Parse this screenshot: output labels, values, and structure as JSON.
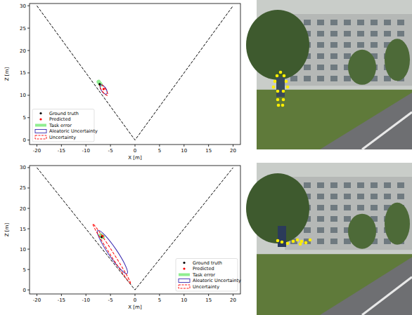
{
  "chart_data": [
    {
      "type": "scatter",
      "xlabel": "X [m]",
      "ylabel": "Z [m]",
      "xlim": [
        -21.5,
        21.5
      ],
      "ylim": [
        -1,
        30.5
      ],
      "xticks": [
        -20,
        -15,
        -10,
        -5,
        0,
        5,
        10,
        15,
        20
      ],
      "yticks": [
        0,
        5,
        10,
        15,
        20,
        25,
        30
      ],
      "legend": "lower left",
      "series": [
        {
          "type": "line",
          "line_style": "dashed",
          "color": "#000000",
          "x": [
            -20,
            0,
            20
          ],
          "values": [
            30,
            0,
            30
          ]
        },
        {
          "name": "Ground truth",
          "type": "scatter",
          "marker": "dot",
          "color": "#000000",
          "x": [
            -7.2
          ],
          "values": [
            12.5
          ]
        },
        {
          "name": "Predicted",
          "type": "scatter",
          "marker": "dot",
          "color": "#ff0000",
          "x": [
            -6.4
          ],
          "values": [
            11.4
          ]
        },
        {
          "name": "Task error",
          "type": "line",
          "line_style": "solid",
          "color": "#90ee90",
          "x": [
            -7.4,
            -7.0
          ],
          "values": [
            13.0,
            12.4
          ]
        },
        {
          "name": "Aleatoric Uncertainty",
          "type": "ellipse",
          "line_style": "solid",
          "color": "#3a2ab0",
          "x": [
            -7.0,
            -5.8
          ],
          "values": [
            12.3,
            10.3
          ],
          "half_width": 0.5
        },
        {
          "name": "Uncertainty",
          "type": "ellipse",
          "line_style": "dashed",
          "color": "#ff0000",
          "x": [
            -7.2,
            -5.6
          ],
          "values": [
            12.5,
            10.0
          ],
          "half_width": 0.4
        }
      ]
    },
    {
      "type": "scatter",
      "xlabel": "X [m]",
      "ylabel": "Z [m]",
      "xlim": [
        -21.5,
        21.5
      ],
      "ylim": [
        -1,
        30.5
      ],
      "xticks": [
        -20,
        -15,
        -10,
        -5,
        0,
        5,
        10,
        15,
        20
      ],
      "yticks": [
        0,
        5,
        10,
        15,
        20,
        25,
        30
      ],
      "legend": "lower right",
      "series": [
        {
          "type": "line",
          "line_style": "dashed",
          "color": "#000000",
          "x": [
            -20,
            0,
            20
          ],
          "values": [
            30,
            0,
            30
          ]
        },
        {
          "name": "Ground truth",
          "type": "scatter",
          "marker": "dot",
          "color": "#000000",
          "x": [
            -6.8
          ],
          "values": [
            13.0
          ]
        },
        {
          "name": "Predicted",
          "type": "scatter",
          "marker": "dot",
          "color": "#ff0000",
          "x": [
            -6.6
          ],
          "values": [
            13.2
          ]
        },
        {
          "name": "Task error",
          "type": "line",
          "line_style": "solid",
          "color": "#90ee90",
          "x": [
            -7.0,
            -6.6
          ],
          "values": [
            13.4,
            13.0
          ]
        },
        {
          "name": "Aleatoric Uncertainty",
          "type": "ellipse",
          "line_style": "solid",
          "color": "#3a2ab0",
          "x": [
            -7.6,
            -1.6
          ],
          "values": [
            14.6,
            4.0
          ],
          "half_width": 0.9
        },
        {
          "name": "Uncertainty",
          "type": "ellipse",
          "line_style": "dashed",
          "color": "#ff0000",
          "x": [
            -8.6,
            -0.9
          ],
          "values": [
            16.2,
            1.6
          ],
          "half_width": 0.35
        }
      ]
    }
  ]
}
